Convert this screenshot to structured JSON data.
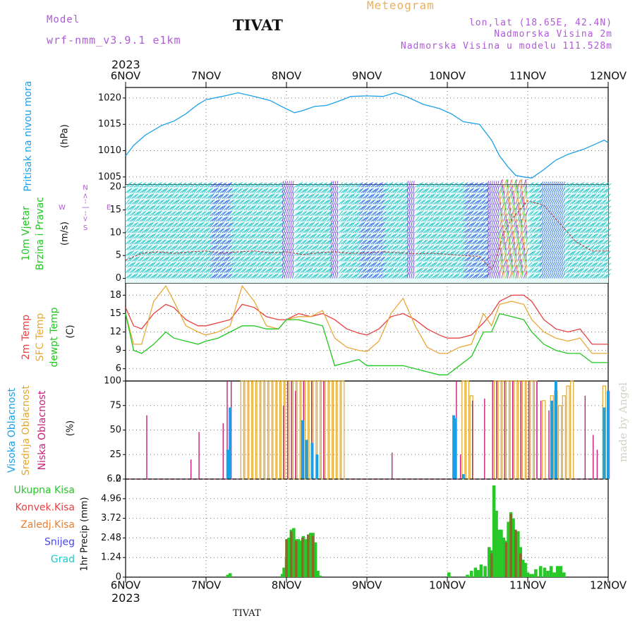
{
  "header": {
    "model_label": "Model",
    "model_name": "wrf-nmm_v3.9.1  e1km",
    "station": "TIVAT",
    "meteogram": "Meteogram",
    "coords": "lon,lat (18.65E, 42.4N)",
    "elevation": "Nadmorska Visina 2m",
    "model_elevation": "Nadmorska Visina u modelu 111.528m",
    "year_top": "2023",
    "year_bottom": "2023",
    "footer_station": "TIVAT",
    "watermark": "made by Angel"
  },
  "time_axis": {
    "labels": [
      "6NOV",
      "7NOV",
      "8NOV",
      "9NOV",
      "10NOV",
      "11NOV",
      "12NOV"
    ],
    "start_day": 6,
    "end_day": 12
  },
  "colors": {
    "pressure": "#1ca0e8",
    "temp2m": "#e84040",
    "sfc": "#e8a838",
    "dewpt": "#20c820",
    "high_cloud": "#18a0e8",
    "mid_cloud": "#e0a830",
    "low_cloud": "#c8207a",
    "total_precip": "#28c828",
    "conv_precip": "#e84040",
    "frozen_precip": "#e88030",
    "snow": "#4848e8",
    "hail": "#20c8c8",
    "wind_bg": "#18c0c0",
    "wind_main": "#2860e8",
    "wind_strong": "#7830d8"
  },
  "panels": {
    "pressure": {
      "title": "Pritisak na nivou mora",
      "unit": "(hPa)",
      "ticks": [
        "1005",
        "1010",
        "1015",
        "1020"
      ]
    },
    "wind": {
      "title1": "10m Vjetar",
      "title2": "Brzina i Pravac",
      "unit": "(m/s)",
      "dir_top": "N",
      "dir_west": "W",
      "dir_east": "E",
      "dir_bottom": "S",
      "arrows": "<-- | -->",
      "ticks": [
        "0",
        "5",
        "10",
        "15",
        "20"
      ]
    },
    "temperature": {
      "title1": "2m Temp",
      "title2": "SFC Temp",
      "title3": "dewpt Temp",
      "unit": "(C)",
      "ticks": [
        "6",
        "9",
        "12",
        "15",
        "18"
      ]
    },
    "cloud": {
      "title1": "Visoka Oblacnost",
      "title2": "Srednja Oblacnost",
      "title3": "Niska Oblacnost",
      "unit": "(%)",
      "ticks": [
        "0",
        "25",
        "50",
        "75",
        "100"
      ]
    },
    "precip": {
      "legend": [
        "Ukupna Kisa",
        "Konvek.Kisa",
        "Zaledj.Kisa",
        "Snijeg",
        "Grad"
      ],
      "unit": "1hr Precip (mm)",
      "ticks": [
        "0",
        "1.24",
        "2.48",
        "3.72",
        "4.96",
        "6.2"
      ]
    }
  },
  "chart_data": [
    {
      "type": "line",
      "title": "Pritisak na nivou mora",
      "ylabel": "(hPa)",
      "ylim": [
        1003.5,
        1022
      ],
      "x_unit": "day of November 2023",
      "series": [
        {
          "name": "Pritisak na nivou mora",
          "x": [
            6.0,
            6.1,
            6.25,
            6.45,
            6.6,
            6.75,
            6.9,
            7.0,
            7.2,
            7.4,
            7.6,
            7.8,
            7.95,
            8.1,
            8.2,
            8.35,
            8.5,
            8.65,
            8.8,
            9.0,
            9.2,
            9.35,
            9.5,
            9.7,
            9.9,
            10.05,
            10.2,
            10.4,
            10.55,
            10.65,
            10.75,
            10.85,
            10.95,
            11.05,
            11.2,
            11.35,
            11.5,
            11.7,
            11.85,
            11.95,
            12.0
          ],
          "values": [
            1009,
            1011,
            1013,
            1014.8,
            1015.6,
            1017,
            1018.8,
            1019.7,
            1020.3,
            1021,
            1020.3,
            1019.5,
            1018.3,
            1017.2,
            1017.6,
            1018.4,
            1018.6,
            1019.4,
            1020.3,
            1020.4,
            1020.3,
            1021,
            1020.2,
            1018.8,
            1018,
            1017,
            1015.5,
            1015,
            1012,
            1009,
            1007,
            1005.3,
            1005,
            1004.8,
            1006.4,
            1008.2,
            1009.3,
            1010.3,
            1011.3,
            1012,
            1011.5
          ]
        }
      ]
    },
    {
      "type": "line",
      "title": "10m Vjetar Brzina i Pravac",
      "ylabel": "(m/s)",
      "ylim": [
        -1,
        20.5
      ],
      "note": "wind barbs across full height; line shows mean speed",
      "series": [
        {
          "name": "10m Vjetar",
          "x": [
            6.0,
            6.2,
            6.4,
            6.6,
            6.8,
            7.0,
            7.2,
            7.4,
            7.6,
            7.8,
            8.0,
            8.2,
            8.4,
            8.6,
            8.8,
            9.0,
            9.2,
            9.4,
            9.6,
            9.8,
            10.0,
            10.2,
            10.4,
            10.55,
            10.6,
            10.7,
            10.8,
            10.9,
            11.0,
            11.2,
            11.4,
            11.6,
            11.8,
            12.0
          ],
          "values": [
            4,
            5.5,
            5.8,
            5.5,
            5.8,
            6,
            5.5,
            5.8,
            6,
            5.6,
            5.8,
            5.2,
            5.6,
            5.8,
            5.5,
            5.6,
            5.8,
            5.6,
            5.4,
            5.5,
            5.3,
            5,
            4.8,
            2,
            4,
            10,
            13,
            15,
            17,
            16,
            12,
            8,
            6,
            6
          ]
        }
      ]
    },
    {
      "type": "line",
      "title": "2m Temp / SFC Temp / dewpt Temp",
      "ylabel": "(C)",
      "ylim": [
        4,
        20
      ],
      "series": [
        {
          "name": "2m Temp",
          "x": [
            6.0,
            6.1,
            6.2,
            6.35,
            6.5,
            6.6,
            6.75,
            6.9,
            7.0,
            7.15,
            7.3,
            7.45,
            7.6,
            7.75,
            7.9,
            8.0,
            8.15,
            8.3,
            8.45,
            8.6,
            8.75,
            8.9,
            9.0,
            9.15,
            9.3,
            9.45,
            9.6,
            9.75,
            9.9,
            10.0,
            10.15,
            10.3,
            10.45,
            10.55,
            10.65,
            10.8,
            10.95,
            11.05,
            11.2,
            11.35,
            11.5,
            11.65,
            11.8,
            12.0
          ],
          "values": [
            16,
            13,
            12.5,
            15,
            16.5,
            16,
            14,
            13,
            13,
            13.5,
            14,
            16.5,
            16,
            14.5,
            14,
            14,
            15,
            14.5,
            15,
            14,
            12.5,
            11.8,
            11.5,
            12.5,
            14.5,
            15,
            14,
            12.5,
            11.5,
            11,
            11,
            11.5,
            13.5,
            15,
            17,
            18,
            18,
            17,
            14,
            12.5,
            12,
            12.5,
            10,
            10
          ]
        },
        {
          "name": "SFC Temp",
          "x": [
            6.0,
            6.1,
            6.2,
            6.35,
            6.5,
            6.6,
            6.75,
            6.9,
            7.0,
            7.15,
            7.3,
            7.45,
            7.6,
            7.75,
            7.9,
            8.0,
            8.15,
            8.3,
            8.45,
            8.6,
            8.75,
            8.9,
            9.0,
            9.15,
            9.3,
            9.45,
            9.6,
            9.75,
            9.9,
            10.0,
            10.15,
            10.3,
            10.45,
            10.55,
            10.65,
            10.8,
            10.95,
            11.05,
            11.2,
            11.35,
            11.5,
            11.65,
            11.8,
            12.0
          ],
          "values": [
            15,
            10,
            10,
            17,
            19.5,
            17,
            13,
            12,
            11.5,
            12,
            13,
            19.5,
            17,
            13,
            12.5,
            14,
            14.5,
            14.5,
            15.5,
            11,
            9.5,
            9,
            8.8,
            10.5,
            15,
            17.5,
            13,
            9.5,
            8.5,
            8.5,
            9.5,
            10,
            15,
            13,
            16.5,
            17,
            16.5,
            14,
            12,
            11,
            10.5,
            11,
            8.5,
            8.5
          ]
        },
        {
          "name": "dewpt Temp",
          "x": [
            6.0,
            6.1,
            6.2,
            6.35,
            6.5,
            6.6,
            6.75,
            6.9,
            7.0,
            7.15,
            7.3,
            7.45,
            7.6,
            7.75,
            7.9,
            8.0,
            8.15,
            8.3,
            8.45,
            8.6,
            8.75,
            8.9,
            9.0,
            9.15,
            9.3,
            9.45,
            9.6,
            9.75,
            9.9,
            10.0,
            10.15,
            10.3,
            10.45,
            10.55,
            10.65,
            10.8,
            10.95,
            11.05,
            11.2,
            11.35,
            11.5,
            11.65,
            11.8,
            12.0
          ],
          "values": [
            15,
            9,
            8.5,
            10,
            12,
            11,
            10.5,
            10,
            10.5,
            11,
            12,
            13,
            13,
            12.5,
            12.5,
            14,
            14,
            13.5,
            13,
            6.5,
            7,
            7.5,
            6.5,
            6.5,
            6.5,
            6.5,
            6,
            5.5,
            5,
            5,
            6.5,
            8,
            12,
            12,
            15,
            14.5,
            14,
            12,
            10,
            9,
            8.5,
            8.5,
            7,
            7
          ]
        }
      ]
    },
    {
      "type": "bar",
      "title": "Visoka / Srednja / Niska Oblacnost",
      "ylabel": "(%)",
      "ylim": [
        0,
        100
      ],
      "series": [
        {
          "name": "Visoka Oblacnost",
          "x": [
            7.27,
            7.3,
            8.2,
            8.25,
            8.32,
            8.38,
            10.08,
            10.1,
            10.2,
            11.3,
            11.35,
            11.95,
            12.0
          ],
          "values": [
            30,
            73,
            60,
            40,
            37,
            25,
            65,
            62,
            5,
            80,
            100,
            73,
            90
          ]
        },
        {
          "name": "Srednja Oblacnost",
          "x": [
            7.45,
            7.5,
            7.55,
            7.6,
            7.65,
            7.7,
            7.75,
            7.8,
            7.85,
            7.9,
            7.95,
            8.0,
            8.05,
            8.1,
            8.15,
            8.2,
            8.25,
            8.3,
            8.35,
            8.4,
            8.45,
            8.5,
            8.55,
            8.6,
            8.65,
            8.7,
            10.2,
            10.25,
            10.3,
            10.6,
            10.65,
            10.7,
            10.75,
            10.8,
            10.85,
            10.9,
            10.95,
            11.0,
            11.05,
            11.1,
            11.2,
            11.3,
            11.35,
            11.4,
            11.45,
            11.5,
            11.55,
            11.95
          ],
          "values": [
            100,
            100,
            100,
            100,
            100,
            100,
            100,
            100,
            100,
            100,
            100,
            100,
            100,
            100,
            100,
            100,
            100,
            100,
            100,
            100,
            100,
            100,
            100,
            100,
            100,
            100,
            100,
            100,
            85,
            100,
            100,
            100,
            100,
            100,
            100,
            100,
            100,
            100,
            100,
            100,
            80,
            85,
            90,
            75,
            85,
            95,
            100,
            95
          ]
        },
        {
          "name": "Niska Oblacnost",
          "x": [
            6.25,
            6.8,
            6.9,
            7.2,
            7.25,
            7.3,
            7.95,
            8.0,
            8.05,
            8.1,
            8.2,
            8.3,
            8.45,
            9.3,
            10.1,
            10.15,
            10.3,
            10.45,
            10.55,
            10.6,
            10.7,
            10.8,
            10.9,
            11.0,
            11.1,
            11.15,
            11.25,
            11.7,
            11.8,
            11.85,
            12.0
          ],
          "values": [
            65,
            20,
            48,
            57,
            100,
            100,
            75,
            100,
            100,
            90,
            100,
            100,
            100,
            27,
            100,
            25,
            80,
            82,
            100,
            100,
            100,
            100,
            100,
            100,
            100,
            80,
            70,
            85,
            45,
            30,
            90
          ]
        }
      ]
    },
    {
      "type": "bar",
      "title": "1hr Precip",
      "ylabel": "1hr Precip (mm)",
      "ylim": [
        0,
        6.2
      ],
      "series": [
        {
          "name": "Ukupna Kisa",
          "x": [
            7.27,
            7.3,
            7.95,
            7.97,
            8.0,
            8.03,
            8.06,
            8.09,
            8.12,
            8.15,
            8.18,
            8.21,
            8.24,
            8.27,
            8.3,
            8.33,
            8.36,
            8.39,
            8.42,
            10.02,
            10.25,
            10.3,
            10.35,
            10.38,
            10.42,
            10.47,
            10.52,
            10.55,
            10.58,
            10.61,
            10.64,
            10.67,
            10.7,
            10.73,
            10.76,
            10.79,
            10.82,
            10.85,
            10.88,
            10.91,
            10.94,
            10.97,
            11.0,
            11.03,
            11.06,
            11.1,
            11.16,
            11.21,
            11.25,
            11.29,
            11.33,
            11.37,
            11.41,
            11.45
          ],
          "values": [
            0.15,
            0.25,
            0.2,
            0.6,
            1.2,
            2.5,
            3.0,
            3.1,
            2.4,
            2.4,
            2.3,
            2.6,
            2.4,
            2.3,
            2.8,
            2.8,
            2.2,
            0.4,
            0.1,
            0.3,
            0.15,
            0.4,
            0.6,
            0.45,
            0.8,
            0.7,
            1.9,
            1.7,
            5.8,
            4.2,
            3.0,
            3.0,
            2.5,
            2.3,
            3.5,
            4.1,
            3.7,
            2.4,
            2.9,
            1.9,
            1.1,
            0.9,
            0.3,
            0.2,
            0.2,
            0.5,
            0.7,
            0.6,
            0.4,
            0.7,
            0.3,
            0.7,
            0.7,
            0.3
          ]
        },
        {
          "name": "Konvek.Kisa",
          "x": [
            8.0,
            8.06,
            8.12,
            8.2,
            8.27,
            8.33,
            10.55,
            10.73,
            10.79,
            10.85,
            10.91
          ],
          "values": [
            2.4,
            2.9,
            2.3,
            2.5,
            2.7,
            2.6,
            1.5,
            2.2,
            4.0,
            3.0,
            1.5
          ]
        }
      ]
    }
  ]
}
